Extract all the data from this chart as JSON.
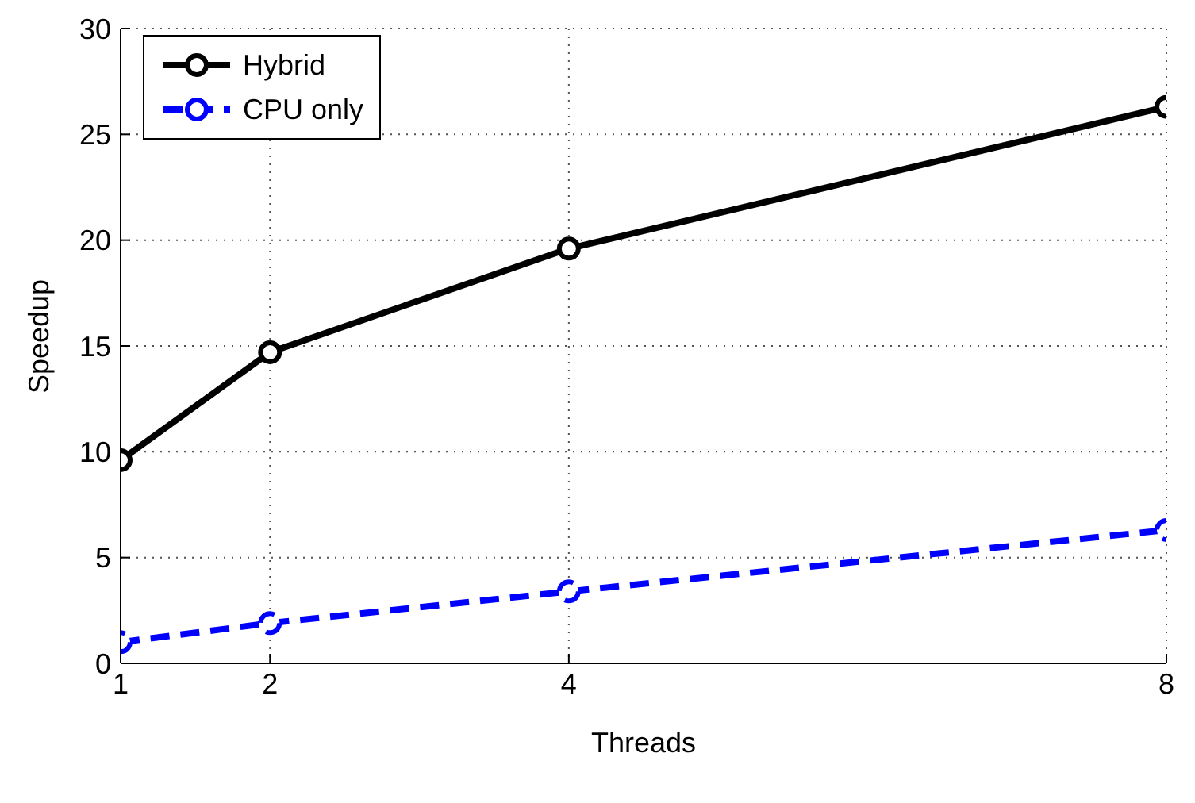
{
  "chart_data": {
    "type": "line",
    "xlabel": "Threads",
    "ylabel": "Speedup",
    "x": [
      1,
      2,
      4,
      8
    ],
    "series": [
      {
        "name": "Hybrid",
        "color": "#000000",
        "values": [
          9.6,
          14.7,
          19.6,
          26.3
        ],
        "line_style": "solid"
      },
      {
        "name": "CPU only",
        "color": "#0000ff",
        "values": [
          1.0,
          1.9,
          3.4,
          6.3
        ],
        "line_style": "dashed"
      }
    ],
    "xlim": [
      1,
      8
    ],
    "xticks": [
      1,
      2,
      4,
      8
    ],
    "ylim": [
      0,
      30
    ],
    "yticks": [
      0,
      5,
      10,
      15,
      20,
      25,
      30
    ],
    "grid": true,
    "legend": "top left",
    "marker": "circle"
  }
}
